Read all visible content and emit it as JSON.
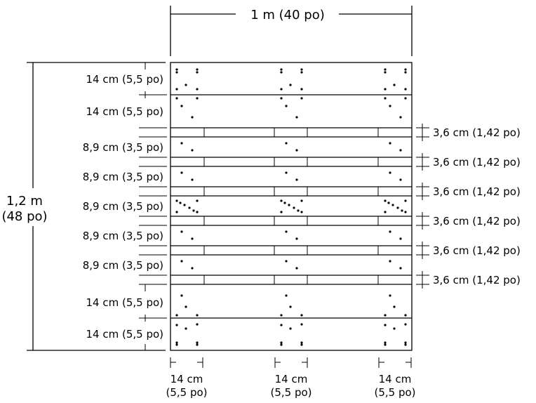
{
  "diagram": {
    "width_label": "1 m (40 po)",
    "height_label_line1": "1,2 m",
    "height_label_line2": "(48 po)",
    "row_labels": [
      "14 cm (5,5 po)",
      "14 cm (5,5 po)",
      "8,9 cm (3,5 po)",
      "8,9 cm (3,5 po)",
      "8,9 cm (3,5 po)",
      "8,9 cm (3,5 po)",
      "8,9 cm (3,5 po)",
      "14 cm (5,5 po)",
      "14 cm (5,5 po)"
    ],
    "gap_labels": [
      "3,6 cm (1,42 po)",
      "3,6 cm (1,42 po)",
      "3,6 cm (1,42 po)",
      "3,6 cm (1,42 po)",
      "3,6 cm (1,42 po)",
      "3,6 cm (1,42 po)"
    ],
    "bottom_labels": [
      {
        "line1": "14 cm",
        "line2": "(5,5 po)"
      },
      {
        "line1": "14 cm",
        "line2": "(5,5 po)"
      },
      {
        "line1": "14 cm",
        "line2": "(5,5 po)"
      }
    ]
  }
}
